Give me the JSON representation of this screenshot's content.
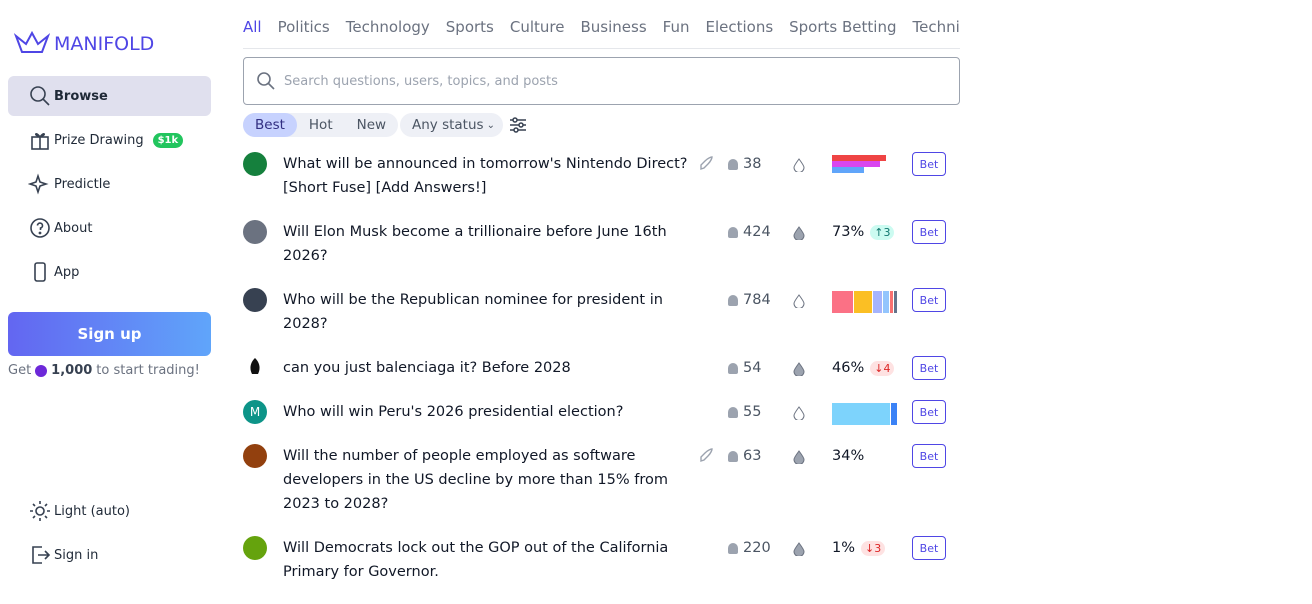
{
  "sidebar": {
    "logo": "MANIFOLD",
    "nav": [
      "Browse",
      "Prize Drawing",
      "Predictle",
      "About",
      "App"
    ],
    "prize_badge": "$1k",
    "signup": "Sign up",
    "signup_note": {
      "prefix": "Get",
      "amount": "1,000",
      "suffix": "to start trading!"
    },
    "bottom": [
      "Light (auto)",
      "Sign in"
    ]
  },
  "topics": [
    "All",
    "Politics",
    "Technology",
    "Sports",
    "Culture",
    "Business",
    "Fun",
    "Elections",
    "Sports Betting",
    "Technic"
  ],
  "search_placeholder": "Search questions, users, topics, and posts",
  "sort": [
    "Best",
    "Hot",
    "New"
  ],
  "status_filter": "Any status",
  "markets": [
    {
      "question": "What will be announced in tomorrow's Nintendo Direct? [Short Fuse] [Add Answers!]",
      "traders": 38,
      "boosted": true,
      "bet": "Bet"
    },
    {
      "question": "Will Elon Musk become a trillionaire before June 16th 2026?",
      "traders": 424,
      "prob": "73%",
      "change": {
        "dir": "up",
        "value": "3"
      },
      "bet": "Bet"
    },
    {
      "question": "Who will be the Republican nominee for president in 2028?",
      "traders": 784,
      "bet": "Bet"
    },
    {
      "question": "can you just balenciaga it? Before 2028",
      "traders": 54,
      "prob": "46%",
      "change": {
        "dir": "down",
        "value": "4"
      },
      "bet": "Bet"
    },
    {
      "question": "Who will win Peru's 2026 presidential election?",
      "traders": 55,
      "avatar_letter": "M",
      "bet": "Bet"
    },
    {
      "question": "Will the number of people employed as software developers in the US decline by more than 15% from 2023 to 2028?",
      "traders": 63,
      "boosted": true,
      "prob": "34%",
      "bet": "Bet"
    },
    {
      "question": "Will Democrats lock out the GOP out of the California Primary for Governor.",
      "traders": 220,
      "prob": "1%",
      "change": {
        "dir": "down",
        "value": "3"
      },
      "bet": "Bet"
    }
  ]
}
